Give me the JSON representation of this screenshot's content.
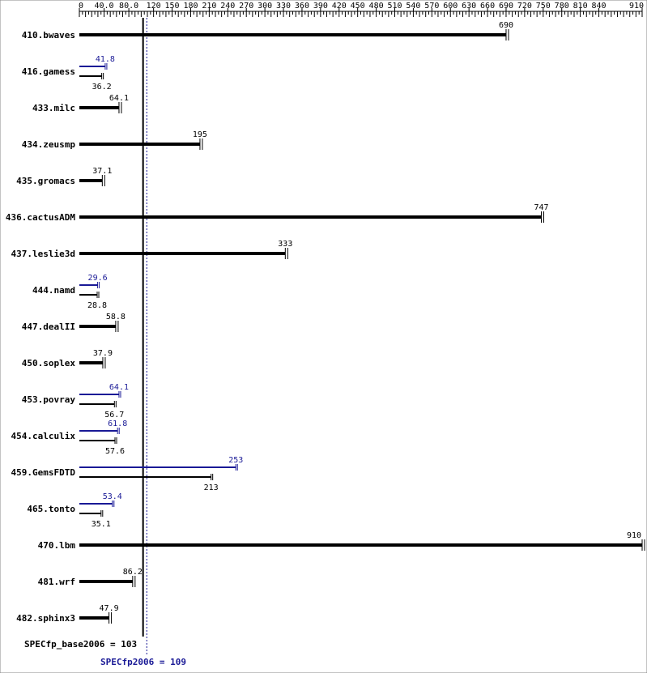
{
  "chart_data": {
    "type": "bar",
    "title": "",
    "xlabel": "",
    "ylabel": "",
    "xlim": [
      0,
      910
    ],
    "x_ticks": [
      "0",
      "40.0",
      "80.0",
      "120",
      "150",
      "180",
      "210",
      "240",
      "270",
      "300",
      "330",
      "360",
      "390",
      "420",
      "450",
      "480",
      "510",
      "540",
      "570",
      "600",
      "630",
      "660",
      "690",
      "720",
      "750",
      "780",
      "810",
      "840",
      "910"
    ],
    "x_tick_values": [
      0,
      40,
      80,
      120,
      150,
      180,
      210,
      240,
      270,
      300,
      330,
      360,
      390,
      420,
      450,
      480,
      510,
      540,
      570,
      600,
      630,
      660,
      690,
      720,
      750,
      780,
      810,
      840,
      910
    ],
    "colors": {
      "base": "#000000",
      "peak": "#191996"
    },
    "categories": [
      "410.bwaves",
      "416.gamess",
      "433.milc",
      "434.zeusmp",
      "435.gromacs",
      "436.cactusADM",
      "437.leslie3d",
      "444.namd",
      "447.dealII",
      "450.soplex",
      "453.povray",
      "454.calculix",
      "459.GemsFDTD",
      "465.tonto",
      "470.lbm",
      "481.wrf",
      "482.sphinx3"
    ],
    "series": [
      {
        "name": "SPECfp_base2006",
        "values": [
          690,
          36.2,
          64.1,
          195,
          37.1,
          747,
          333,
          28.8,
          58.8,
          37.9,
          56.7,
          57.6,
          213,
          35.1,
          910,
          86.2,
          47.9
        ],
        "labels": [
          "690",
          "36.2",
          "64.1",
          "195",
          "37.1",
          "747",
          "333",
          "28.8",
          "58.8",
          "37.9",
          "56.7",
          "57.6",
          "213",
          "35.1",
          "910",
          "86.2",
          "47.9"
        ]
      },
      {
        "name": "SPECfp2006",
        "values": [
          null,
          41.8,
          null,
          null,
          null,
          null,
          null,
          29.6,
          null,
          null,
          64.1,
          61.8,
          253,
          53.4,
          null,
          null,
          null
        ],
        "labels": [
          null,
          "41.8",
          null,
          null,
          null,
          null,
          null,
          "29.6",
          null,
          null,
          "64.1",
          "61.8",
          "253",
          "53.4",
          null,
          null,
          null
        ]
      }
    ],
    "reference_lines": [
      {
        "label": "SPECfp_base2006 = 103",
        "value": 103,
        "style": "solid",
        "color": "#000000"
      },
      {
        "label": "SPECfp2006 = 109",
        "value": 109,
        "style": "dotted",
        "color": "#191996"
      }
    ],
    "grid": false,
    "legend": "none"
  }
}
